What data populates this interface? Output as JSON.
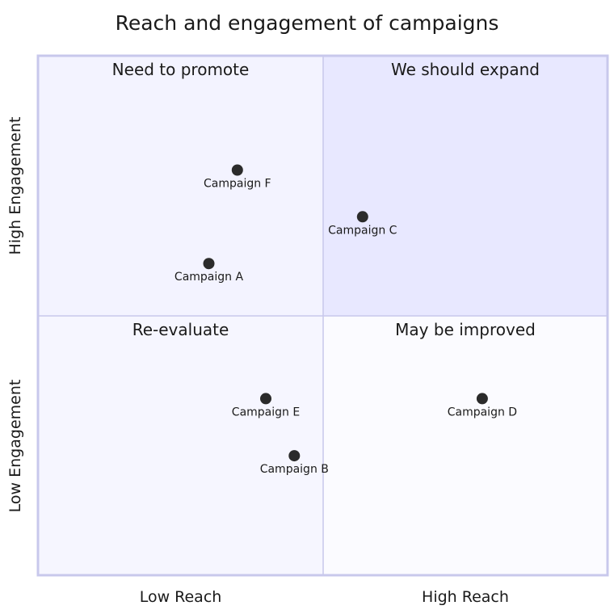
{
  "chart_data": {
    "type": "scatter",
    "title": "Reach and engagement of campaigns",
    "x_axis": {
      "low_label": "Low Reach",
      "high_label": "High Reach",
      "range": [
        0,
        1
      ]
    },
    "y_axis": {
      "low_label": "Low Engagement",
      "high_label": "High Engagement",
      "range": [
        0,
        1
      ]
    },
    "quadrants": {
      "top_left": "Need to promote",
      "top_right": "We should expand",
      "bottom_left": "Re-evaluate",
      "bottom_right": "May be improved"
    },
    "points": [
      {
        "label": "Campaign A",
        "x": 0.3,
        "y": 0.6
      },
      {
        "label": "Campaign B",
        "x": 0.45,
        "y": 0.23
      },
      {
        "label": "Campaign C",
        "x": 0.57,
        "y": 0.69
      },
      {
        "label": "Campaign D",
        "x": 0.78,
        "y": 0.34
      },
      {
        "label": "Campaign E",
        "x": 0.4,
        "y": 0.34
      },
      {
        "label": "Campaign F",
        "x": 0.35,
        "y": 0.78
      }
    ],
    "colors": {
      "quadrant_top_left": "#f3f3ff",
      "quadrant_top_right": "#e8e8ff",
      "quadrant_bottom_left": "#f6f6ff",
      "quadrant_bottom_right": "#fbfbff",
      "border": "#c8c8ec",
      "point": "#2b2b2b"
    }
  }
}
